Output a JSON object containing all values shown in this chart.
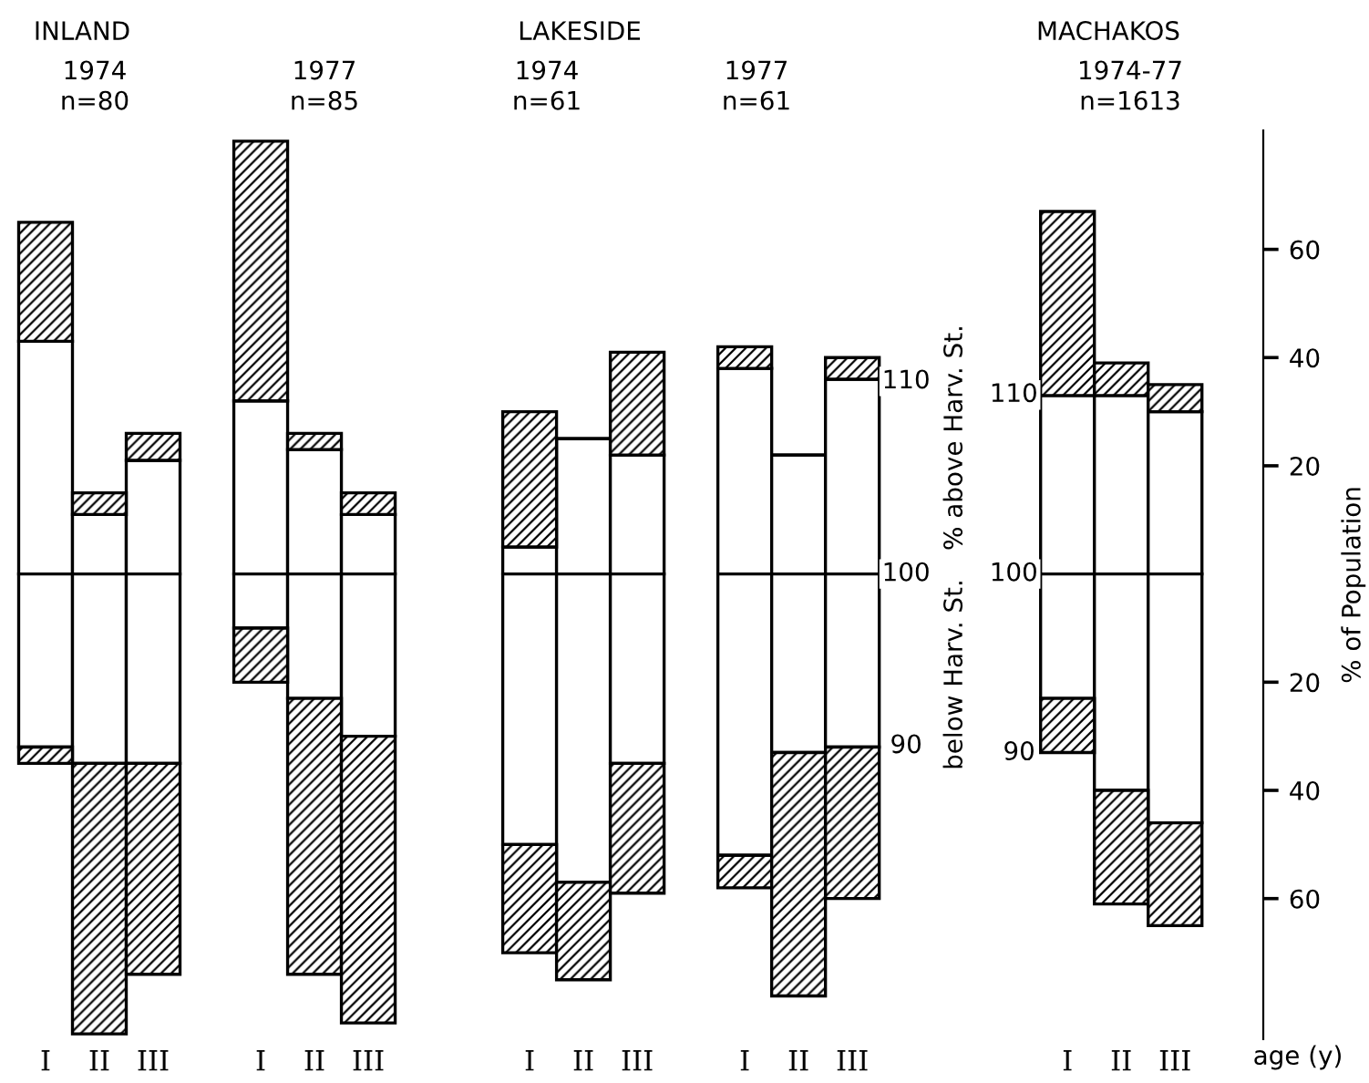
{
  "chart_data": {
    "type": "bar",
    "stacked": true,
    "categories": [
      "I",
      "II",
      "III",
      null,
      "I",
      "II",
      "III",
      null,
      null,
      "I",
      "II",
      "III",
      null,
      "I",
      "II",
      "III",
      null,
      null,
      null,
      "I",
      "II",
      "III"
    ],
    "series": [
      {
        "color": "#ffffff",
        "values": [
          43,
          11,
          21,
          null,
          32,
          23,
          11,
          null,
          null,
          5,
          25,
          22,
          null,
          38,
          22,
          36,
          null,
          null,
          null,
          33,
          33,
          30
        ]
      },
      {
        "color": "#000000",
        "values": [
          22,
          4,
          5,
          null,
          48,
          3,
          4,
          null,
          null,
          25,
          0,
          19,
          null,
          4,
          0,
          4,
          null,
          null,
          null,
          34,
          6,
          5
        ]
      },
      {
        "color": "#ffffff",
        "values": [
          -32,
          -35,
          -35,
          null,
          -10,
          -23,
          -30,
          null,
          null,
          -50,
          -57,
          -35,
          null,
          -52,
          -33,
          -32,
          null,
          null,
          null,
          -23,
          -40,
          -46
        ]
      },
      {
        "color": "#000000",
        "values": [
          -3,
          -50,
          -39,
          null,
          -10,
          -51,
          -53,
          null,
          null,
          -20,
          -18,
          -24,
          null,
          -6,
          -45,
          -28,
          null,
          null,
          null,
          -10,
          -21,
          -19
        ]
      }
    ],
    "ylabel": "% of Population",
    "ylim": [
      -86,
      82
    ],
    "yticks": [
      {
        "value": -60,
        "label": "60"
      },
      {
        "value": -40,
        "label": "40"
      },
      {
        "value": -20,
        "label": "20"
      },
      20,
      40,
      60
    ],
    "annotations": [
      "INLAND",
      "1974\nn=80",
      "1977\nn=85",
      "LAKESIDE",
      "1974\nn=61",
      "1977\nn=61",
      "MACHAKOS",
      "1974-77\nn=1613",
      {
        "text": "110",
        "y": 35.6
      },
      {
        "text": "100",
        "y": 0
      },
      {
        "text": "90",
        "y": -31.8
      },
      {
        "text": "110",
        "y": 33.1
      },
      {
        "text": "100",
        "y": 0
      },
      {
        "text": "90",
        "y": -33.1
      },
      "% above Harv. St.",
      "below Harv. St.",
      "age (y)"
    ]
  }
}
